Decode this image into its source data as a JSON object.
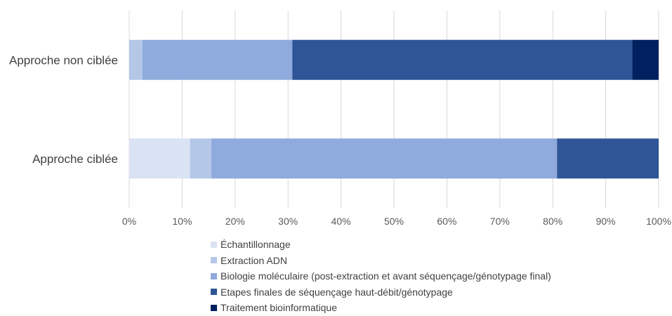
{
  "chart_data": {
    "type": "bar",
    "orientation": "horizontal",
    "stacked": "percent",
    "categories": [
      "Approche non ciblée",
      "Approche ciblée"
    ],
    "series": [
      {
        "name": "Échantillonnage",
        "color": "#dae3f3",
        "values": [
          0,
          11.5
        ]
      },
      {
        "name": "Extraction ADN",
        "color": "#b4c7e7",
        "values": [
          2.5,
          4
        ]
      },
      {
        "name": "Biologie moléculaire (post-extraction et avant séquençage/génotypage final)",
        "color": "#8faadc",
        "values": [
          28.3,
          65.3
        ]
      },
      {
        "name": "Etapes finales de séquençage haut-débit/génotypage",
        "color": "#2f5597",
        "values": [
          64.2,
          19.2
        ]
      },
      {
        "name": "Traitement bioinformatique",
        "color": "#002060",
        "values": [
          5,
          0
        ]
      }
    ],
    "xlim": [
      0,
      100
    ],
    "xticks": [
      "0%",
      "10%",
      "20%",
      "30%",
      "40%",
      "50%",
      "60%",
      "70%",
      "80%",
      "90%",
      "100%"
    ],
    "grid": true,
    "legend_position": "bottom"
  }
}
